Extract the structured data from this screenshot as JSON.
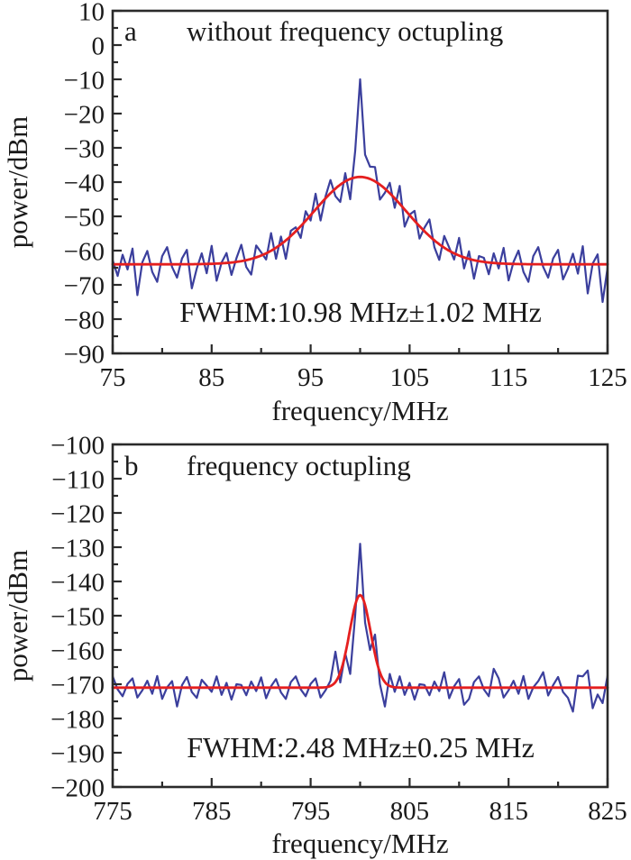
{
  "figure": {
    "background": "#ffffff",
    "description": "Two stacked RF spectrum panels comparing linewidth without and with frequency octupling"
  },
  "colors": {
    "trace": "#3b3f9d",
    "fit": "#e51f1f",
    "axis": "#2a2a2a",
    "text": "#1a1a1a"
  },
  "chart_data": [
    {
      "type": "line",
      "panel_label": "a",
      "title": "without frequency octupling",
      "xlabel": "frequency/MHz",
      "ylabel": "power/dBm",
      "annotation": "FWHM:10.98 MHz±1.02 MHz",
      "xlim": [
        75,
        125
      ],
      "ylim": [
        -90,
        10
      ],
      "x_major_ticks": [
        75,
        85,
        95,
        105,
        115,
        125
      ],
      "x_minor_ticks": [
        80,
        90,
        100,
        110,
        120
      ],
      "y_major_ticks": [
        10,
        0,
        -10,
        -20,
        -30,
        -40,
        -50,
        -60,
        -70,
        -80,
        -90
      ],
      "y_minor_ticks": [
        5,
        -5,
        -15,
        -25,
        -35,
        -45,
        -55,
        -65,
        -75,
        -85
      ],
      "grid": false,
      "legend": "none",
      "peak_frequency_mhz": 100,
      "peak_power_dbm": -10,
      "noise_floor_dbm": -64,
      "fwhm_mhz": 10.98,
      "fwhm_error_mhz": 1.02,
      "series": [
        {
          "name": "measured-spectrum",
          "color_key": "trace",
          "x0": 75,
          "dx": 0.5,
          "y": [
            -62.8,
            -67.4,
            -61.2,
            -65.5,
            -59.4,
            -73.0,
            -63.4,
            -60.1,
            -66.2,
            -69.1,
            -61.6,
            -59.0,
            -64.8,
            -67.9,
            -62.3,
            -59.8,
            -71.0,
            -65.2,
            -60.8,
            -66.6,
            -58.6,
            -68.8,
            -63.5,
            -60.7,
            -67.1,
            -62.2,
            -58.3,
            -64.8,
            -67.0,
            -58.5,
            -60.5,
            -62.6,
            -54.9,
            -62.4,
            -55.9,
            -62.4,
            -54.2,
            -53.2,
            -56.3,
            -48.5,
            -51.2,
            -43.4,
            -51.2,
            -44.2,
            -39.4,
            -44.1,
            -45.8,
            -37.4,
            -45.0,
            -31.0,
            -10.0,
            -32.0,
            -35.5,
            -35.6,
            -45.1,
            -43.1,
            -40.2,
            -47.5,
            -41.1,
            -53.0,
            -49.5,
            -48.4,
            -56.5,
            -53.3,
            -50.9,
            -59.0,
            -62.7,
            -55.7,
            -59.1,
            -62.6,
            -56.3,
            -65.2,
            -60.2,
            -68.2,
            -61.6,
            -62.1,
            -66.9,
            -60.8,
            -65.2,
            -59.2,
            -68.7,
            -63.3,
            -60.0,
            -66.2,
            -69.1,
            -61.6,
            -59.0,
            -64.8,
            -67.9,
            -62.3,
            -59.8,
            -68.4,
            -65.2,
            -60.9,
            -66.7,
            -58.7,
            -72.5,
            -63.8,
            -61.1,
            -75.0,
            -65.0
          ]
        },
        {
          "name": "gaussian-fit",
          "color_key": "fit",
          "model": "gaussian",
          "center": 100,
          "peak": -38.5,
          "baseline": -64,
          "fwhm": 10.98
        }
      ]
    },
    {
      "type": "line",
      "panel_label": "b",
      "title": "frequency octupling",
      "xlabel": "frequency/MHz",
      "ylabel": "power/dBm",
      "annotation": "FWHM:2.48 MHz±0.25 MHz",
      "xlim": [
        775,
        825
      ],
      "ylim": [
        -200,
        -100
      ],
      "x_major_ticks": [
        775,
        785,
        795,
        805,
        815,
        825
      ],
      "x_minor_ticks": [
        780,
        790,
        800,
        810,
        820
      ],
      "y_major_ticks": [
        -100,
        -110,
        -120,
        -130,
        -140,
        -150,
        -160,
        -170,
        -180,
        -190,
        -200
      ],
      "y_minor_ticks": [
        -105,
        -115,
        -125,
        -135,
        -145,
        -155,
        -165,
        -175,
        -185,
        -195
      ],
      "grid": false,
      "legend": "none",
      "peak_frequency_mhz": 800,
      "peak_power_dbm": -129,
      "noise_floor_dbm": -171,
      "fwhm_mhz": 2.48,
      "fwhm_error_mhz": 0.25,
      "series": [
        {
          "name": "measured-spectrum",
          "color_key": "trace",
          "x0": 775,
          "dx": 0.5,
          "y": [
            -167.7,
            -171.5,
            -173.5,
            -169.9,
            -168.3,
            -173.9,
            -171.8,
            -169.0,
            -172.8,
            -167.6,
            -174.3,
            -170.9,
            -169.1,
            -176.5,
            -170.3,
            -167.9,
            -172.3,
            -174.0,
            -168.7,
            -170.4,
            -172.2,
            -167.7,
            -173.1,
            -169.6,
            -174.5,
            -170.0,
            -170.2,
            -173.2,
            -169.2,
            -172.0,
            -168.0,
            -174.1,
            -170.6,
            -168.5,
            -172.4,
            -174.3,
            -169.4,
            -167.7,
            -171.5,
            -173.5,
            -169.9,
            -168.3,
            -173.9,
            -171.8,
            -169.0,
            -160.5,
            -169.5,
            -161.0,
            -167.0,
            -150.0,
            -129.0,
            -152.0,
            -160.0,
            -155.5,
            -170.0,
            -176.5,
            -167.0,
            -172.2,
            -167.7,
            -173.1,
            -169.6,
            -174.5,
            -170.0,
            -170.2,
            -173.2,
            -169.2,
            -172.0,
            -166.5,
            -174.1,
            -170.6,
            -168.5,
            -176.0,
            -174.3,
            -169.4,
            -167.7,
            -171.5,
            -173.5,
            -165.5,
            -168.3,
            -173.9,
            -171.8,
            -169.0,
            -172.8,
            -167.6,
            -174.3,
            -170.9,
            -169.1,
            -166.5,
            -173.3,
            -170.3,
            -167.9,
            -172.3,
            -174.0,
            -178.0,
            -167.5,
            -167.7,
            -166.0,
            -177.0,
            -173.0,
            -175.5,
            -167.5
          ]
        },
        {
          "name": "gaussian-fit",
          "color_key": "fit",
          "model": "gaussian",
          "center": 800,
          "peak": -144,
          "baseline": -171,
          "fwhm": 2.48
        }
      ]
    }
  ]
}
